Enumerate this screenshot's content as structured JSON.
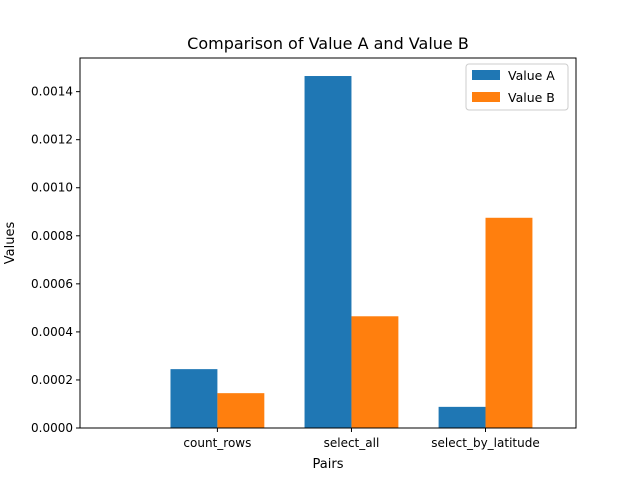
{
  "chart_data": {
    "type": "bar",
    "title": "Comparison of Value A and Value B",
    "xlabel": "Pairs",
    "ylabel": "Values",
    "categories": [
      "count_rows",
      "select_all",
      "select_by_latitude"
    ],
    "series": [
      {
        "name": "Value A",
        "color": "#1f77b4",
        "values": [
          0.000245,
          0.001465,
          8.8e-05
        ]
      },
      {
        "name": "Value B",
        "color": "#ff7f0e",
        "values": [
          0.000145,
          0.000465,
          0.000875
        ]
      }
    ],
    "ylim": [
      0,
      0.00154
    ],
    "yticks": [
      0.0,
      0.0002,
      0.0004,
      0.0006,
      0.0008,
      0.001,
      0.0012,
      0.0014
    ],
    "ytick_labels": [
      "0.0000",
      "0.0002",
      "0.0004",
      "0.0006",
      "0.0008",
      "0.0010",
      "0.0012",
      "0.0014"
    ],
    "legend_position": "top-right",
    "grid": false
  }
}
